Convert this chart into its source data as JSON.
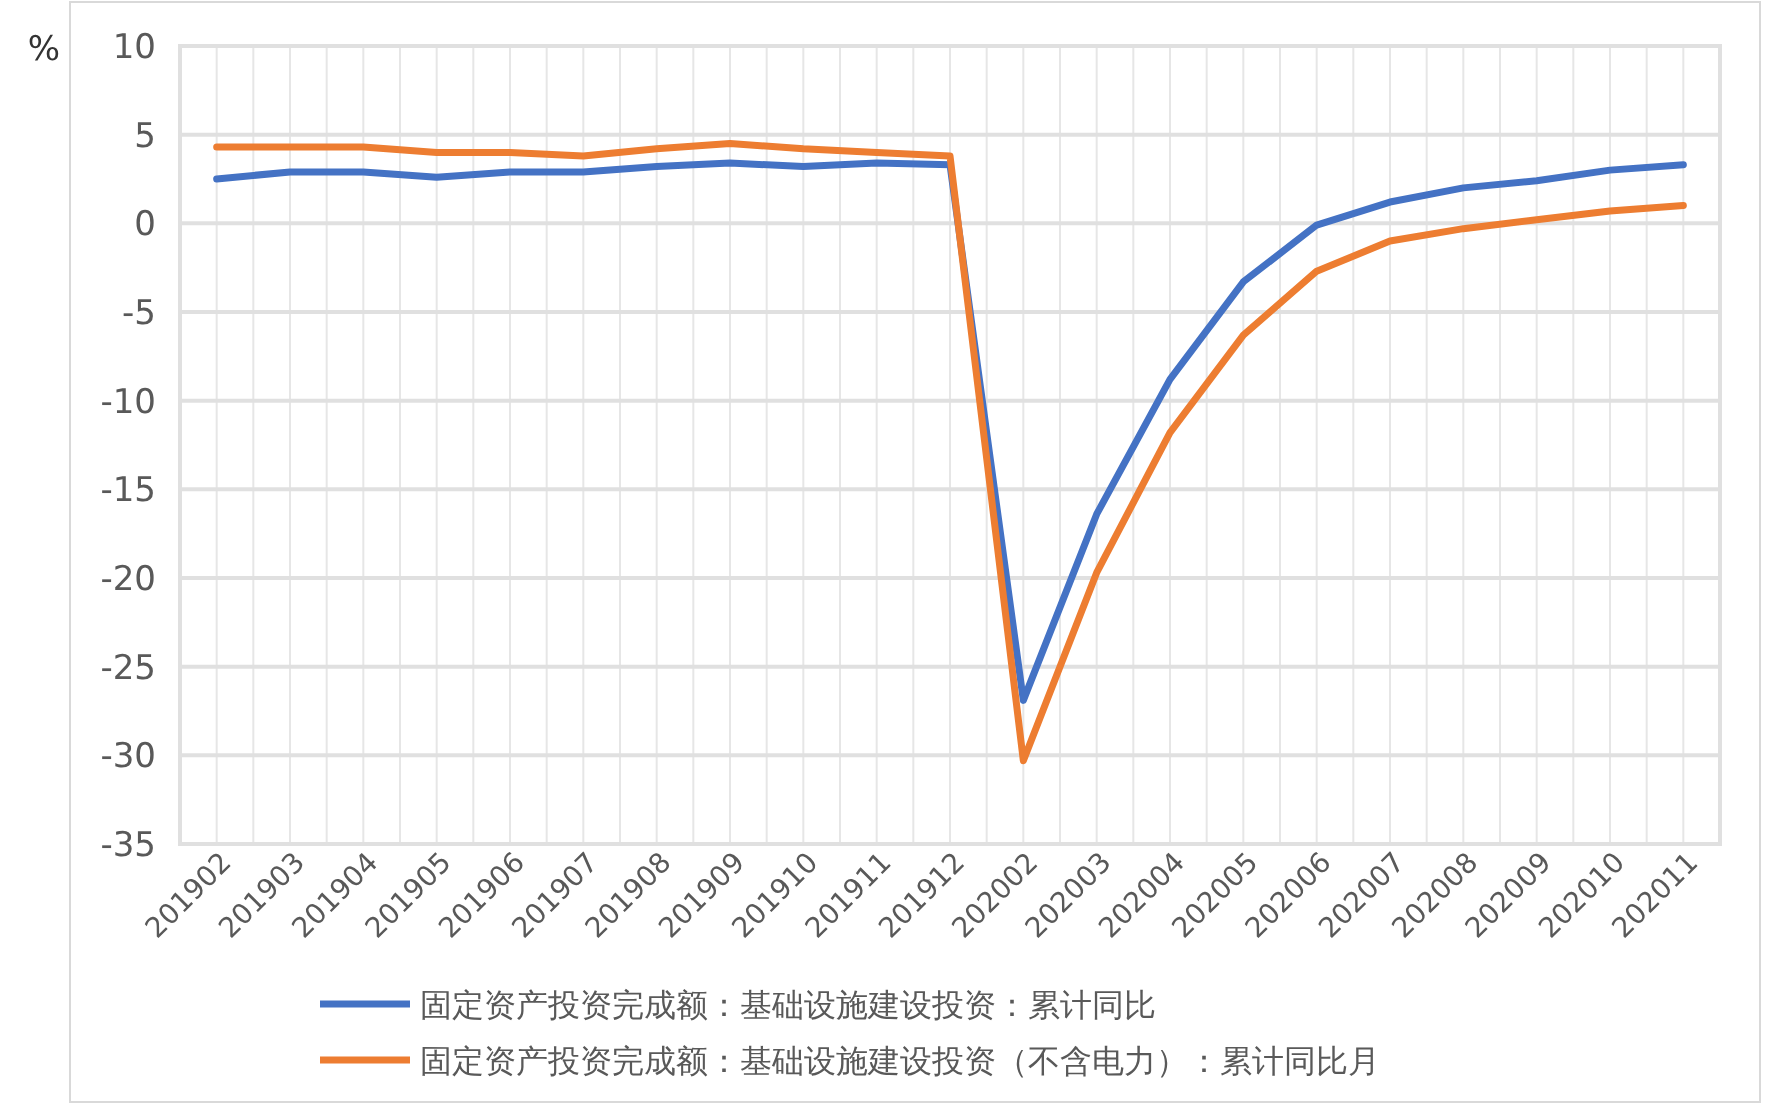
{
  "chart_data": {
    "type": "line",
    "ylabel": "%",
    "categories": [
      "201902",
      "201903",
      "201904",
      "201905",
      "201906",
      "201907",
      "201908",
      "201909",
      "201910",
      "201911",
      "201912",
      "202002",
      "202003",
      "202004",
      "202005",
      "202006",
      "202007",
      "202008",
      "202009",
      "202010",
      "202011"
    ],
    "series": [
      {
        "name": "固定资产投资完成额：基础设施建设投资：累计同比",
        "color": "#4472c4",
        "values": [
          2.5,
          2.9,
          2.9,
          2.6,
          2.9,
          2.9,
          3.2,
          3.4,
          3.2,
          3.4,
          3.3,
          -26.9,
          -16.4,
          -8.8,
          -3.3,
          -0.1,
          1.2,
          2.0,
          2.4,
          3.0,
          3.3
        ]
      },
      {
        "name": "固定资产投资完成额：基础设施建设投资（不含电力）：累计同比月",
        "color": "#ed7d31",
        "values": [
          4.3,
          4.3,
          4.3,
          4.0,
          4.0,
          3.8,
          4.2,
          4.5,
          4.2,
          4.0,
          3.8,
          -30.3,
          -19.7,
          -11.8,
          -6.3,
          -2.7,
          -1.0,
          -0.3,
          0.2,
          0.7,
          1.0
        ]
      }
    ],
    "ylim": [
      -35,
      10
    ],
    "yticks": [
      -35,
      -30,
      -25,
      -20,
      -15,
      -10,
      -5,
      0,
      5,
      10
    ],
    "grid": true,
    "legend": "bottom",
    "marker": "none",
    "line_style": "solid"
  }
}
